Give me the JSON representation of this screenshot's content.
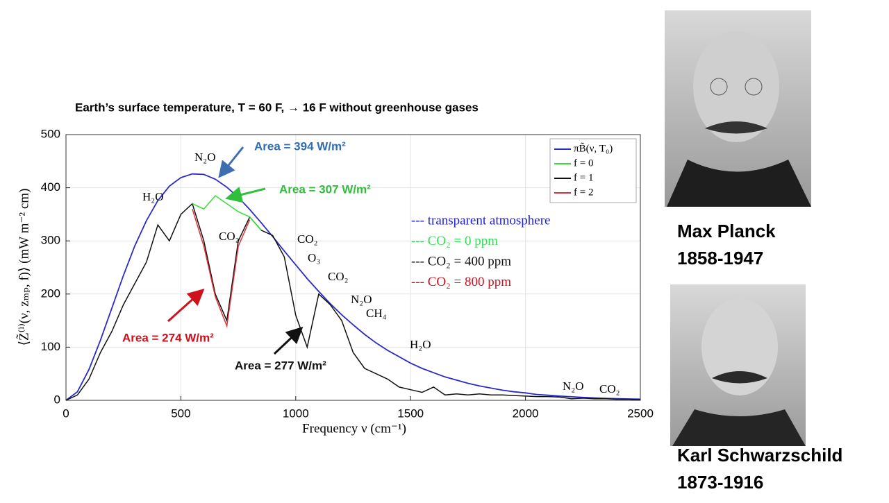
{
  "slide": {
    "heading": "Earth’s surface temperature, T = 60 F,  →   16 F without greenhouse gases",
    "people": [
      {
        "name": "Max Planck",
        "years": "1858-1947"
      },
      {
        "name": "Karl Schwarzschild",
        "years": "1873-1916"
      }
    ]
  },
  "chart_data": {
    "type": "line",
    "x_label": "Frequency ν (cm⁻¹)",
    "y_label": "⟨Z̃⁽ⁱ⁾(ν, zₘₚ, f)⟩ (mW m⁻² cm)",
    "xlim": [
      0,
      2500
    ],
    "ylim": [
      0,
      500
    ],
    "xticks": [
      0,
      500,
      1000,
      1500,
      2000,
      2500
    ],
    "yticks": [
      0,
      100,
      200,
      300,
      400,
      500
    ],
    "grid": true,
    "legend": "upper right",
    "x": [
      0,
      50,
      100,
      150,
      200,
      250,
      300,
      350,
      400,
      450,
      500,
      550,
      600,
      650,
      700,
      750,
      800,
      850,
      900,
      950,
      1000,
      1050,
      1100,
      1150,
      1200,
      1250,
      1300,
      1350,
      1400,
      1450,
      1500,
      1550,
      1600,
      1650,
      1700,
      1750,
      1800,
      1850,
      1900,
      1950,
      2000,
      2050,
      2100,
      2150,
      2200,
      2250,
      2300,
      2350,
      2400,
      2450,
      2500
    ],
    "series": [
      {
        "name": "πB̃(ν, T₀)",
        "color": "#2a2ac8",
        "values": [
          0,
          16,
          58,
          113,
          174,
          235,
          291,
          338,
          376,
          403,
          419,
          426,
          425,
          416,
          401,
          382,
          359,
          334,
          308,
          281,
          255,
          229,
          205,
          182,
          161,
          142,
          124,
          108,
          94,
          82,
          70,
          60,
          52,
          44,
          38,
          32,
          27,
          23,
          19,
          16,
          14,
          11,
          9.5,
          8,
          6.7,
          5.5,
          4.6,
          3.8,
          3.1,
          2.6,
          2.2
        ]
      },
      {
        "name": "f = 0",
        "color": "#33e033",
        "values": [
          null,
          null,
          null,
          null,
          null,
          null,
          null,
          null,
          null,
          null,
          null,
          370,
          360,
          385,
          370,
          355,
          345,
          320,
          null,
          null,
          null,
          null,
          null,
          null,
          null,
          null,
          null,
          null,
          null,
          null,
          null,
          null,
          null,
          null,
          null,
          null,
          null,
          null,
          null,
          null,
          null,
          null,
          null,
          null,
          null,
          null,
          null,
          null,
          null,
          null,
          null
        ]
      },
      {
        "name": "f = 1",
        "color": "#111111",
        "values": [
          0,
          10,
          40,
          90,
          130,
          180,
          220,
          260,
          330,
          300,
          350,
          370,
          300,
          200,
          150,
          300,
          345,
          320,
          310,
          270,
          160,
          100,
          200,
          180,
          150,
          90,
          60,
          50,
          40,
          25,
          20,
          15,
          25,
          10,
          12,
          10,
          12,
          10,
          10,
          9,
          8,
          7,
          7,
          6,
          3,
          4,
          3,
          3,
          2,
          2,
          1
        ]
      },
      {
        "name": "f = 2",
        "color": "#e0303a",
        "values": [
          null,
          null,
          null,
          null,
          null,
          null,
          null,
          null,
          null,
          null,
          null,
          360,
          290,
          195,
          140,
          290,
          340,
          null,
          null,
          null,
          null,
          null,
          null,
          null,
          null,
          null,
          null,
          null,
          null,
          null,
          null,
          null,
          null,
          null,
          null,
          null,
          null,
          null,
          null,
          null,
          null,
          null,
          null,
          null,
          null,
          null,
          null,
          null,
          null,
          null,
          null
        ]
      }
    ],
    "molecules": [
      "N₂O",
      "H₂O",
      "CO₂",
      "CO₂",
      "O₃",
      "CO₂",
      "N₂O",
      "CH₄",
      "H₂O",
      "N₂O",
      "CO₂"
    ],
    "areas": [
      {
        "text": "Area = 394 W/m²",
        "color": "#2e6db4"
      },
      {
        "text": "Area = 307 W/m²",
        "color": "#2fbf3a"
      },
      {
        "text": "Area = 274 W/m²",
        "color": "#d0101c"
      },
      {
        "text": "Area = 277 W/m²",
        "color": "#111111"
      }
    ],
    "key": [
      {
        "text": "--- transparent atmosphere",
        "color": "#2020d0"
      },
      {
        "text": "--- CO₂ = 0 ppm",
        "color": "#33dd55"
      },
      {
        "text": "--- CO₂ = 400 ppm",
        "color": "#111111"
      },
      {
        "text": "--- CO₂ = 800 ppm",
        "color": "#d0101c"
      }
    ]
  }
}
